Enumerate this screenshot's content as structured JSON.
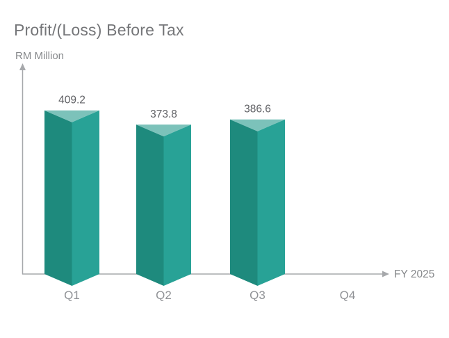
{
  "title": "Profit/(Loss) Before Tax",
  "y_axis_label": "RM Million",
  "x_axis_label": "FY 2025",
  "chart_data": {
    "type": "bar",
    "style": "3d-triangular-prism",
    "title": "Profit/(Loss) Before Tax",
    "xlabel": "FY 2025",
    "ylabel": "RM Million",
    "categories": [
      "Q1",
      "Q2",
      "Q3",
      "Q4"
    ],
    "values": [
      409.2,
      373.8,
      386.6,
      null
    ],
    "value_labels": [
      "409.2",
      "373.8",
      "386.6",
      ""
    ],
    "ylim": [
      0,
      500
    ],
    "grid": false,
    "legend": "none",
    "colors": {
      "bar_face_left": "#1e8a7d",
      "bar_face_right": "#28a296",
      "bar_face_top": "#7cc2ba",
      "axis": "#a6a8ab",
      "value_label": "#606165",
      "category_label": "#909296",
      "axis_label": "#86888b",
      "title": "#757679"
    }
  }
}
